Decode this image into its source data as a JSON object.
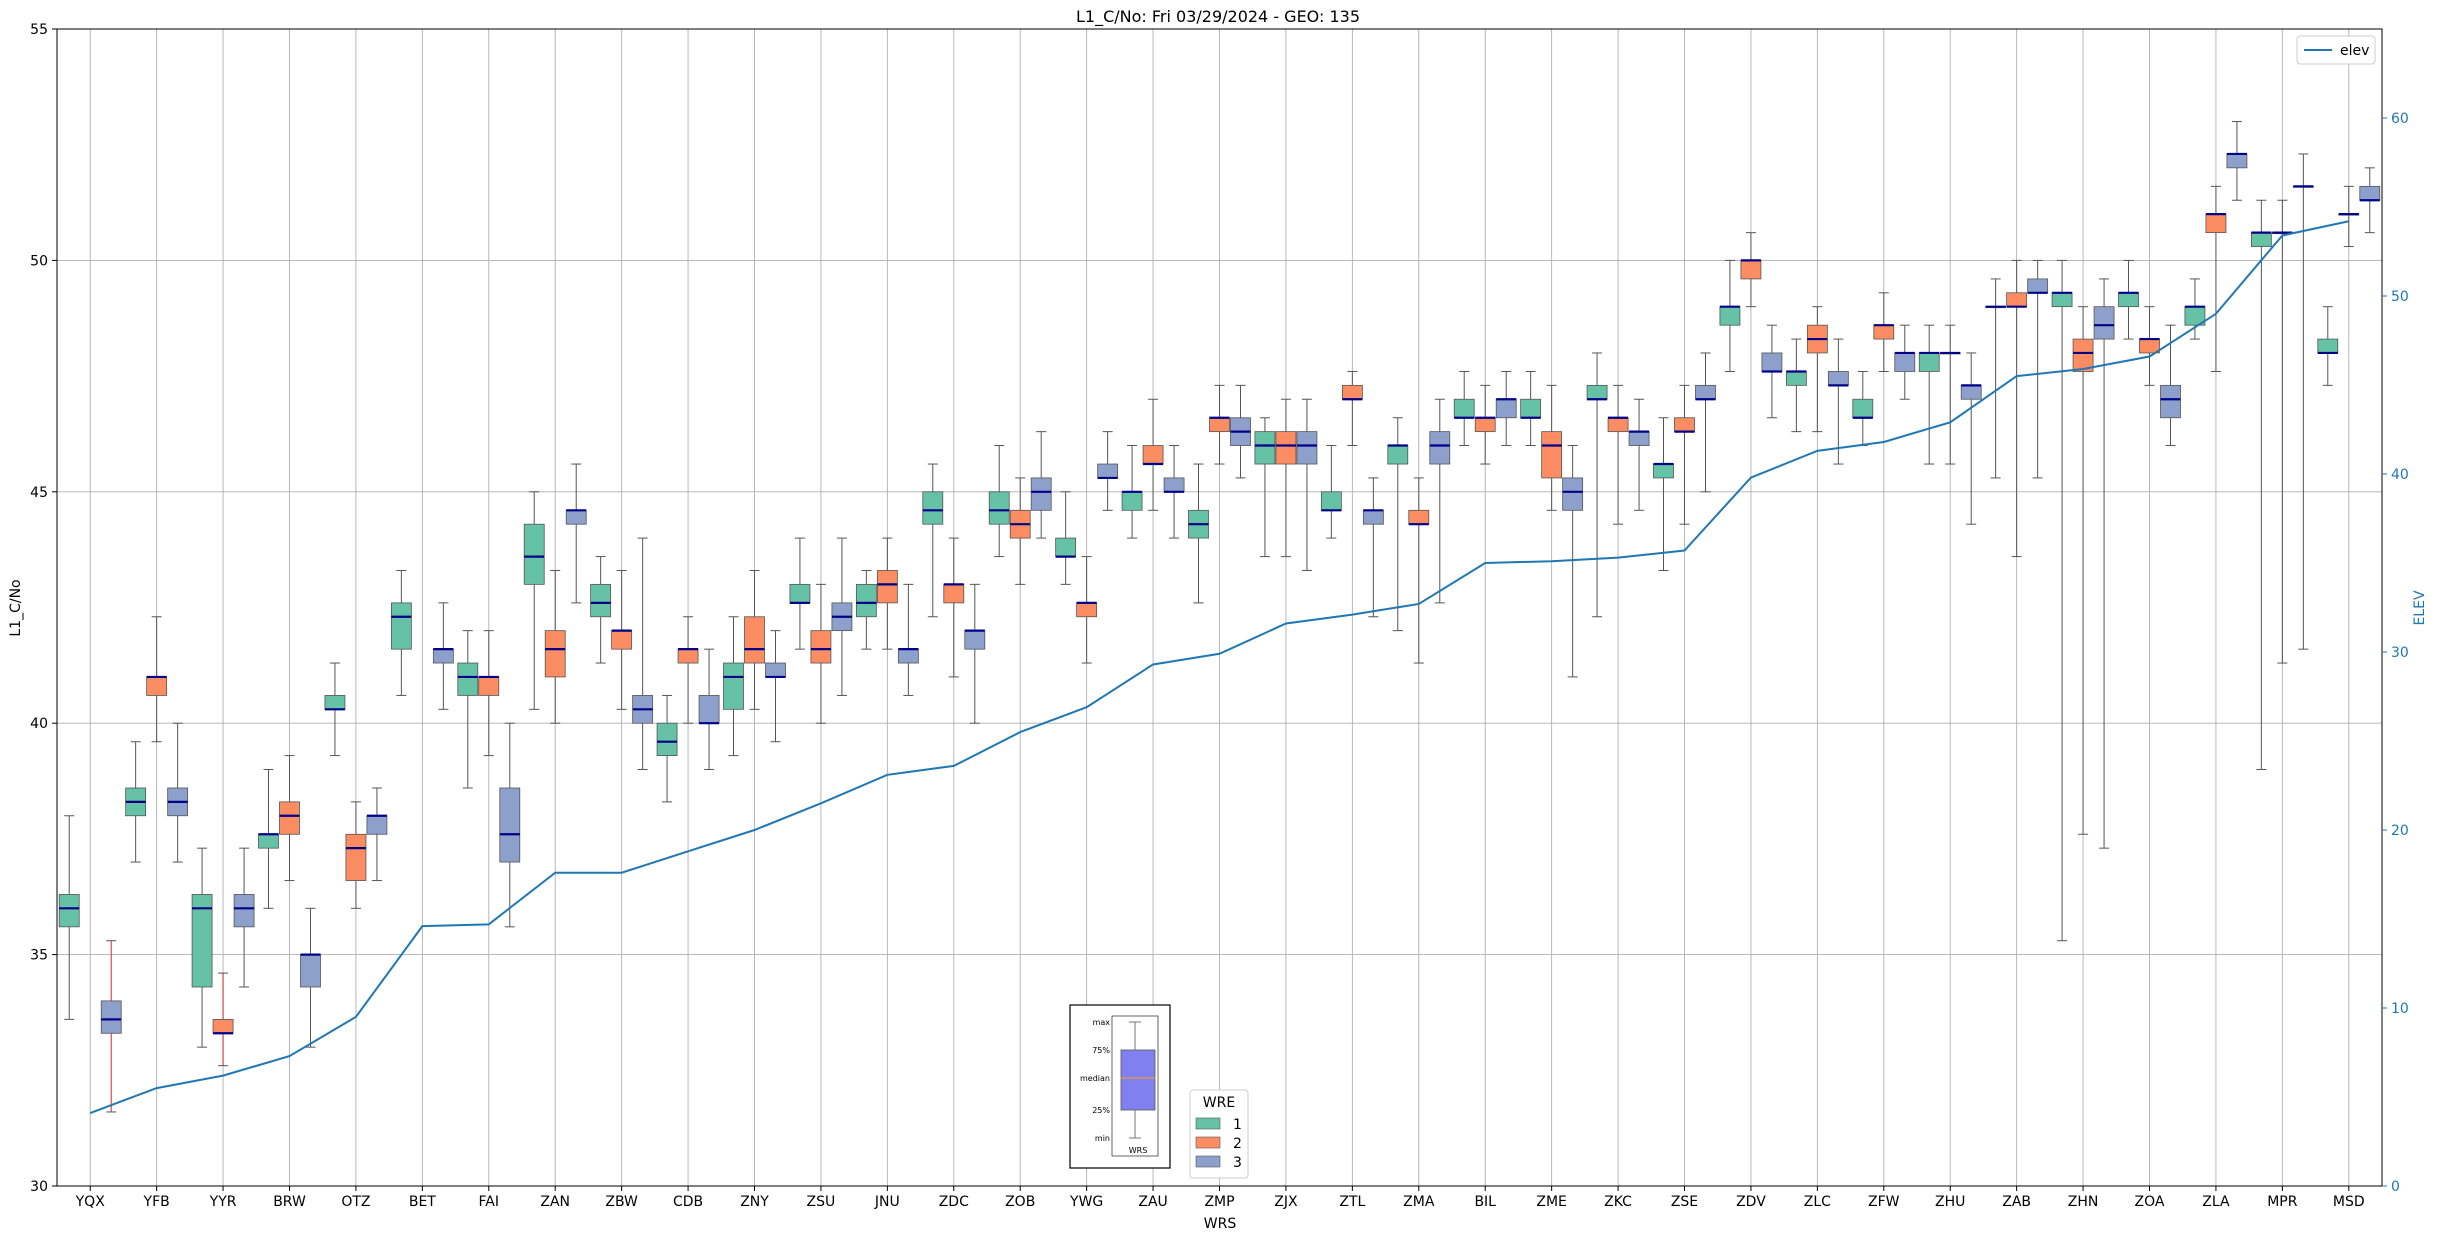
{
  "chart_data": {
    "type": "box",
    "title": "L1_C/No: Fri 03/29/2024 - GEO: 135",
    "xlabel": "WRS",
    "ylabel": "L1_C/No",
    "y2label": "ELEV",
    "ylim": [
      30,
      55
    ],
    "y2lim": [
      0,
      65
    ],
    "yticks": [
      30,
      35,
      40,
      45,
      50,
      55
    ],
    "y2ticks": [
      0,
      10,
      20,
      30,
      40,
      50,
      60
    ],
    "grid": true,
    "categories": [
      "YQX",
      "YFB",
      "YYR",
      "BRW",
      "OTZ",
      "BET",
      "FAI",
      "ZAN",
      "ZBW",
      "CDB",
      "ZNY",
      "ZSU",
      "JNU",
      "ZDC",
      "ZOB",
      "YWG",
      "ZAU",
      "ZMP",
      "ZJX",
      "ZTL",
      "ZMA",
      "BIL",
      "ZME",
      "ZKC",
      "ZSE",
      "ZDV",
      "ZLC",
      "ZFW",
      "ZHU",
      "ZAB",
      "ZHN",
      "ZOA",
      "ZLA",
      "MPR",
      "MSD"
    ],
    "wre_colors": {
      "1": "#66c2a5",
      "2": "#fc8d62",
      "3": "#8da0cb"
    },
    "elev_line": {
      "name": "elev",
      "color": "#1f77b4",
      "values": [
        4.1,
        5.5,
        6.2,
        7.3,
        9.5,
        14.6,
        14.7,
        17.6,
        17.6,
        18.8,
        20.0,
        21.5,
        23.1,
        23.6,
        25.5,
        26.9,
        29.3,
        29.9,
        31.6,
        32.1,
        32.7,
        35.0,
        35.1,
        35.3,
        35.7,
        39.8,
        41.3,
        41.8,
        42.9,
        45.5,
        45.9,
        46.6,
        49.0,
        53.4,
        54.2
      ]
    },
    "boxes": [
      {
        "category": "YQX",
        "wre": "1",
        "min": 33.6,
        "q1": 35.6,
        "median": 36.0,
        "q3": 36.3,
        "max": 38.0
      },
      {
        "category": "YQX",
        "wre": "3",
        "min": 31.6,
        "q1": 33.3,
        "median": 33.6,
        "q3": 34.0,
        "max": 35.3,
        "red_whisker": true
      },
      {
        "category": "YFB",
        "wre": "1",
        "min": 37.0,
        "q1": 38.0,
        "median": 38.3,
        "q3": 38.6,
        "max": 39.6
      },
      {
        "category": "YFB",
        "wre": "2",
        "min": 39.6,
        "q1": 40.6,
        "median": 41.0,
        "q3": 41.0,
        "max": 42.3
      },
      {
        "category": "YFB",
        "wre": "3",
        "min": 37.0,
        "q1": 38.0,
        "median": 38.3,
        "q3": 38.6,
        "max": 40.0
      },
      {
        "category": "YYR",
        "wre": "1",
        "min": 33.0,
        "q1": 34.3,
        "median": 36.0,
        "q3": 36.3,
        "max": 37.3
      },
      {
        "category": "YYR",
        "wre": "2",
        "min": 32.6,
        "q1": 33.3,
        "median": 33.3,
        "q3": 33.6,
        "max": 34.6,
        "red_whisker": true
      },
      {
        "category": "YYR",
        "wre": "3",
        "min": 34.3,
        "q1": 35.6,
        "median": 36.0,
        "q3": 36.3,
        "max": 37.3
      },
      {
        "category": "BRW",
        "wre": "1",
        "min": 36.0,
        "q1": 37.3,
        "median": 37.6,
        "q3": 37.6,
        "max": 39.0
      },
      {
        "category": "BRW",
        "wre": "2",
        "min": 36.6,
        "q1": 37.6,
        "median": 38.0,
        "q3": 38.3,
        "max": 39.3
      },
      {
        "category": "BRW",
        "wre": "3",
        "min": 33.0,
        "q1": 34.3,
        "median": 35.0,
        "q3": 35.0,
        "max": 36.0
      },
      {
        "category": "OTZ",
        "wre": "1",
        "min": 39.3,
        "q1": 40.3,
        "median": 40.3,
        "q3": 40.6,
        "max": 41.3
      },
      {
        "category": "OTZ",
        "wre": "2",
        "min": 36.0,
        "q1": 36.6,
        "median": 37.3,
        "q3": 37.6,
        "max": 38.3
      },
      {
        "category": "OTZ",
        "wre": "3",
        "min": 36.6,
        "q1": 37.6,
        "median": 38.0,
        "q3": 38.0,
        "max": 38.6
      },
      {
        "category": "BET",
        "wre": "1",
        "min": 40.6,
        "q1": 41.6,
        "median": 42.3,
        "q3": 42.6,
        "max": 43.3
      },
      {
        "category": "BET",
        "wre": "3",
        "min": 40.3,
        "q1": 41.3,
        "median": 41.6,
        "q3": 41.6,
        "max": 42.6
      },
      {
        "category": "FAI",
        "wre": "1",
        "min": 38.6,
        "q1": 40.6,
        "median": 41.0,
        "q3": 41.3,
        "max": 42.0
      },
      {
        "category": "FAI",
        "wre": "2",
        "min": 39.3,
        "q1": 40.6,
        "median": 41.0,
        "q3": 41.0,
        "max": 42.0
      },
      {
        "category": "FAI",
        "wre": "3",
        "min": 35.6,
        "q1": 37.0,
        "median": 37.6,
        "q3": 38.6,
        "max": 40.0
      },
      {
        "category": "ZAN",
        "wre": "1",
        "min": 40.3,
        "q1": 43.0,
        "median": 43.6,
        "q3": 44.3,
        "max": 45.0
      },
      {
        "category": "ZAN",
        "wre": "2",
        "min": 40.0,
        "q1": 41.0,
        "median": 41.6,
        "q3": 42.0,
        "max": 43.3
      },
      {
        "category": "ZAN",
        "wre": "3",
        "min": 42.6,
        "q1": 44.3,
        "median": 44.6,
        "q3": 44.6,
        "max": 45.6
      },
      {
        "category": "ZBW",
        "wre": "1",
        "min": 41.3,
        "q1": 42.3,
        "median": 42.6,
        "q3": 43.0,
        "max": 43.6
      },
      {
        "category": "ZBW",
        "wre": "2",
        "min": 40.3,
        "q1": 41.6,
        "median": 42.0,
        "q3": 42.0,
        "max": 43.3
      },
      {
        "category": "ZBW",
        "wre": "3",
        "min": 39.0,
        "q1": 40.0,
        "median": 40.3,
        "q3": 40.6,
        "max": 44.0
      },
      {
        "category": "CDB",
        "wre": "1",
        "min": 38.3,
        "q1": 39.3,
        "median": 39.6,
        "q3": 40.0,
        "max": 40.6
      },
      {
        "category": "CDB",
        "wre": "2",
        "min": 40.0,
        "q1": 41.3,
        "median": 41.6,
        "q3": 41.6,
        "max": 42.3
      },
      {
        "category": "CDB",
        "wre": "3",
        "min": 39.0,
        "q1": 40.0,
        "median": 40.0,
        "q3": 40.6,
        "max": 41.6
      },
      {
        "category": "ZNY",
        "wre": "1",
        "min": 39.3,
        "q1": 40.3,
        "median": 41.0,
        "q3": 41.3,
        "max": 42.3
      },
      {
        "category": "ZNY",
        "wre": "2",
        "min": 40.3,
        "q1": 41.3,
        "median": 41.6,
        "q3": 42.3,
        "max": 43.3
      },
      {
        "category": "ZNY",
        "wre": "3",
        "min": 39.6,
        "q1": 41.0,
        "median": 41.0,
        "q3": 41.3,
        "max": 42.0
      },
      {
        "category": "ZSU",
        "wre": "1",
        "min": 41.6,
        "q1": 42.6,
        "median": 42.6,
        "q3": 43.0,
        "max": 44.0
      },
      {
        "category": "ZSU",
        "wre": "2",
        "min": 40.0,
        "q1": 41.3,
        "median": 41.6,
        "q3": 42.0,
        "max": 43.0
      },
      {
        "category": "ZSU",
        "wre": "3",
        "min": 40.6,
        "q1": 42.0,
        "median": 42.3,
        "q3": 42.6,
        "max": 44.0
      },
      {
        "category": "JNU",
        "wre": "1",
        "min": 41.6,
        "q1": 42.3,
        "median": 42.6,
        "q3": 43.0,
        "max": 43.3
      },
      {
        "category": "JNU",
        "wre": "2",
        "min": 41.6,
        "q1": 42.6,
        "median": 43.0,
        "q3": 43.3,
        "max": 44.0
      },
      {
        "category": "JNU",
        "wre": "3",
        "min": 40.6,
        "q1": 41.3,
        "median": 41.6,
        "q3": 41.6,
        "max": 43.0
      },
      {
        "category": "ZDC",
        "wre": "1",
        "min": 42.3,
        "q1": 44.3,
        "median": 44.6,
        "q3": 45.0,
        "max": 45.6
      },
      {
        "category": "ZDC",
        "wre": "2",
        "min": 41.0,
        "q1": 42.6,
        "median": 43.0,
        "q3": 43.0,
        "max": 44.0
      },
      {
        "category": "ZDC",
        "wre": "3",
        "min": 40.0,
        "q1": 41.6,
        "median": 42.0,
        "q3": 42.0,
        "max": 43.0
      },
      {
        "category": "ZOB",
        "wre": "1",
        "min": 43.6,
        "q1": 44.3,
        "median": 44.6,
        "q3": 45.0,
        "max": 46.0
      },
      {
        "category": "ZOB",
        "wre": "2",
        "min": 43.0,
        "q1": 44.0,
        "median": 44.3,
        "q3": 44.6,
        "max": 45.3
      },
      {
        "category": "ZOB",
        "wre": "3",
        "min": 44.0,
        "q1": 44.6,
        "median": 45.0,
        "q3": 45.3,
        "max": 46.3
      },
      {
        "category": "YWG",
        "wre": "1",
        "min": 43.0,
        "q1": 43.6,
        "median": 43.6,
        "q3": 44.0,
        "max": 45.0
      },
      {
        "category": "YWG",
        "wre": "2",
        "min": 41.3,
        "q1": 42.3,
        "median": 42.6,
        "q3": 42.6,
        "max": 43.6
      },
      {
        "category": "YWG",
        "wre": "3",
        "min": 44.6,
        "q1": 45.3,
        "median": 45.3,
        "q3": 45.6,
        "max": 46.3
      },
      {
        "category": "ZAU",
        "wre": "1",
        "min": 44.0,
        "q1": 44.6,
        "median": 45.0,
        "q3": 45.0,
        "max": 46.0
      },
      {
        "category": "ZAU",
        "wre": "2",
        "min": 44.6,
        "q1": 45.6,
        "median": 45.6,
        "q3": 46.0,
        "max": 47.0
      },
      {
        "category": "ZAU",
        "wre": "3",
        "min": 44.0,
        "q1": 45.0,
        "median": 45.0,
        "q3": 45.3,
        "max": 46.0
      },
      {
        "category": "ZMP",
        "wre": "1",
        "min": 42.6,
        "q1": 44.0,
        "median": 44.3,
        "q3": 44.6,
        "max": 45.6
      },
      {
        "category": "ZMP",
        "wre": "2",
        "min": 45.6,
        "q1": 46.3,
        "median": 46.6,
        "q3": 46.6,
        "max": 47.3
      },
      {
        "category": "ZMP",
        "wre": "3",
        "min": 45.3,
        "q1": 46.0,
        "median": 46.3,
        "q3": 46.6,
        "max": 47.3
      },
      {
        "category": "ZJX",
        "wre": "1",
        "min": 43.6,
        "q1": 45.6,
        "median": 46.0,
        "q3": 46.3,
        "max": 46.6
      },
      {
        "category": "ZJX",
        "wre": "2",
        "min": 43.6,
        "q1": 45.6,
        "median": 46.0,
        "q3": 46.3,
        "max": 47.0
      },
      {
        "category": "ZJX",
        "wre": "3",
        "min": 43.3,
        "q1": 45.6,
        "median": 46.0,
        "q3": 46.3,
        "max": 47.0
      },
      {
        "category": "ZTL",
        "wre": "1",
        "min": 44.0,
        "q1": 44.6,
        "median": 44.6,
        "q3": 45.0,
        "max": 46.0
      },
      {
        "category": "ZTL",
        "wre": "2",
        "min": 46.0,
        "q1": 47.0,
        "median": 47.0,
        "q3": 47.3,
        "max": 47.6
      },
      {
        "category": "ZTL",
        "wre": "3",
        "min": 42.3,
        "q1": 44.3,
        "median": 44.6,
        "q3": 44.6,
        "max": 45.3
      },
      {
        "category": "ZMA",
        "wre": "1",
        "min": 42.0,
        "q1": 45.6,
        "median": 46.0,
        "q3": 46.0,
        "max": 46.6
      },
      {
        "category": "ZMA",
        "wre": "2",
        "min": 41.3,
        "q1": 44.3,
        "median": 44.3,
        "q3": 44.6,
        "max": 45.3
      },
      {
        "category": "ZMA",
        "wre": "3",
        "min": 42.6,
        "q1": 45.6,
        "median": 46.0,
        "q3": 46.3,
        "max": 47.0
      },
      {
        "category": "BIL",
        "wre": "1",
        "min": 46.0,
        "q1": 46.6,
        "median": 46.6,
        "q3": 47.0,
        "max": 47.6
      },
      {
        "category": "BIL",
        "wre": "2",
        "min": 45.6,
        "q1": 46.3,
        "median": 46.6,
        "q3": 46.6,
        "max": 47.3
      },
      {
        "category": "BIL",
        "wre": "3",
        "min": 46.0,
        "q1": 46.6,
        "median": 47.0,
        "q3": 47.0,
        "max": 47.6
      },
      {
        "category": "ZME",
        "wre": "1",
        "min": 46.0,
        "q1": 46.6,
        "median": 46.6,
        "q3": 47.0,
        "max": 47.6
      },
      {
        "category": "ZME",
        "wre": "2",
        "min": 44.6,
        "q1": 45.3,
        "median": 46.0,
        "q3": 46.3,
        "max": 47.3
      },
      {
        "category": "ZME",
        "wre": "3",
        "min": 41.0,
        "q1": 44.6,
        "median": 45.0,
        "q3": 45.3,
        "max": 46.0
      },
      {
        "category": "ZKC",
        "wre": "1",
        "min": 42.3,
        "q1": 47.0,
        "median": 47.0,
        "q3": 47.3,
        "max": 48.0
      },
      {
        "category": "ZKC",
        "wre": "2",
        "min": 44.3,
        "q1": 46.3,
        "median": 46.6,
        "q3": 46.6,
        "max": 47.3
      },
      {
        "category": "ZKC",
        "wre": "3",
        "min": 44.6,
        "q1": 46.0,
        "median": 46.3,
        "q3": 46.3,
        "max": 47.0
      },
      {
        "category": "ZSE",
        "wre": "1",
        "min": 43.3,
        "q1": 45.3,
        "median": 45.6,
        "q3": 45.6,
        "max": 46.6
      },
      {
        "category": "ZSE",
        "wre": "2",
        "min": 44.3,
        "q1": 46.3,
        "median": 46.3,
        "q3": 46.6,
        "max": 47.3
      },
      {
        "category": "ZSE",
        "wre": "3",
        "min": 45.0,
        "q1": 47.0,
        "median": 47.0,
        "q3": 47.3,
        "max": 48.0
      },
      {
        "category": "ZDV",
        "wre": "1",
        "min": 47.6,
        "q1": 48.6,
        "median": 49.0,
        "q3": 49.0,
        "max": 50.0
      },
      {
        "category": "ZDV",
        "wre": "2",
        "min": 49.0,
        "q1": 49.6,
        "median": 50.0,
        "q3": 50.0,
        "max": 50.6
      },
      {
        "category": "ZDV",
        "wre": "3",
        "min": 46.6,
        "q1": 47.6,
        "median": 47.6,
        "q3": 48.0,
        "max": 48.6
      },
      {
        "category": "ZLC",
        "wre": "1",
        "min": 46.3,
        "q1": 47.3,
        "median": 47.6,
        "q3": 47.6,
        "max": 48.3
      },
      {
        "category": "ZLC",
        "wre": "2",
        "min": 46.3,
        "q1": 48.0,
        "median": 48.3,
        "q3": 48.6,
        "max": 49.0
      },
      {
        "category": "ZLC",
        "wre": "3",
        "min": 45.6,
        "q1": 47.3,
        "median": 47.3,
        "q3": 47.6,
        "max": 48.3
      },
      {
        "category": "ZFW",
        "wre": "1",
        "min": 46.0,
        "q1": 46.6,
        "median": 46.6,
        "q3": 47.0,
        "max": 47.6
      },
      {
        "category": "ZFW",
        "wre": "2",
        "min": 47.6,
        "q1": 48.3,
        "median": 48.6,
        "q3": 48.6,
        "max": 49.3
      },
      {
        "category": "ZFW",
        "wre": "3",
        "min": 47.0,
        "q1": 47.6,
        "median": 48.0,
        "q3": 48.0,
        "max": 48.6
      },
      {
        "category": "ZHU",
        "wre": "1",
        "min": 45.6,
        "q1": 47.6,
        "median": 48.0,
        "q3": 48.0,
        "max": 48.6
      },
      {
        "category": "ZHU",
        "wre": "2",
        "min": 45.6,
        "q1": 48.0,
        "median": 48.0,
        "q3": 48.0,
        "max": 48.6
      },
      {
        "category": "ZHU",
        "wre": "3",
        "min": 44.3,
        "q1": 47.0,
        "median": 47.3,
        "q3": 47.3,
        "max": 48.0
      },
      {
        "category": "ZAB",
        "wre": "1",
        "min": 45.3,
        "q1": 49.0,
        "median": 49.0,
        "q3": 49.0,
        "max": 49.6
      },
      {
        "category": "ZAB",
        "wre": "2",
        "min": 43.6,
        "q1": 49.0,
        "median": 49.0,
        "q3": 49.3,
        "max": 50.0
      },
      {
        "category": "ZAB",
        "wre": "3",
        "min": 45.3,
        "q1": 49.3,
        "median": 49.3,
        "q3": 49.6,
        "max": 50.0
      },
      {
        "category": "ZHN",
        "wre": "1",
        "min": 35.3,
        "q1": 49.0,
        "median": 49.3,
        "q3": 49.3,
        "max": 50.0
      },
      {
        "category": "ZHN",
        "wre": "2",
        "min": 37.6,
        "q1": 47.6,
        "median": 48.0,
        "q3": 48.3,
        "max": 49.0
      },
      {
        "category": "ZHN",
        "wre": "3",
        "min": 37.3,
        "q1": 48.3,
        "median": 48.6,
        "q3": 49.0,
        "max": 49.6
      },
      {
        "category": "ZOA",
        "wre": "1",
        "min": 48.3,
        "q1": 49.0,
        "median": 49.3,
        "q3": 49.3,
        "max": 50.0
      },
      {
        "category": "ZOA",
        "wre": "2",
        "min": 47.3,
        "q1": 48.0,
        "median": 48.3,
        "q3": 48.3,
        "max": 49.0
      },
      {
        "category": "ZOA",
        "wre": "3",
        "min": 46.0,
        "q1": 46.6,
        "median": 47.0,
        "q3": 47.3,
        "max": 48.6
      },
      {
        "category": "ZLA",
        "wre": "1",
        "min": 48.3,
        "q1": 48.6,
        "median": 49.0,
        "q3": 49.0,
        "max": 49.6
      },
      {
        "category": "ZLA",
        "wre": "2",
        "min": 47.6,
        "q1": 50.6,
        "median": 51.0,
        "q3": 51.0,
        "max": 51.6
      },
      {
        "category": "ZLA",
        "wre": "3",
        "min": 51.3,
        "q1": 52.0,
        "median": 52.3,
        "q3": 52.3,
        "max": 53.0
      },
      {
        "category": "MPR",
        "wre": "1",
        "min": 39.0,
        "q1": 50.3,
        "median": 50.6,
        "q3": 50.6,
        "max": 51.3
      },
      {
        "category": "MPR",
        "wre": "2",
        "min": 41.3,
        "q1": 50.6,
        "median": 50.6,
        "q3": 50.6,
        "max": 51.3
      },
      {
        "category": "MPR",
        "wre": "3",
        "min": 41.6,
        "q1": 51.6,
        "median": 51.6,
        "q3": 51.6,
        "max": 52.3
      },
      {
        "category": "MSD",
        "wre": "1",
        "min": 47.3,
        "q1": 48.0,
        "median": 48.0,
        "q3": 48.3,
        "max": 49.0
      },
      {
        "category": "MSD",
        "wre": "2",
        "min": 50.3,
        "q1": 51.0,
        "median": 51.0,
        "q3": 51.0,
        "max": 51.6
      },
      {
        "category": "MSD",
        "wre": "3",
        "min": 50.6,
        "q1": 51.3,
        "median": 51.3,
        "q3": 51.6,
        "max": 52.0
      }
    ],
    "legend_elev": {
      "label": "elev",
      "position": "top-right"
    },
    "legend_wre": {
      "title": "WRE",
      "entries": [
        "1",
        "2",
        "3"
      ]
    },
    "key_inset": {
      "labels": [
        "max",
        "75%",
        "median",
        "25%",
        "min"
      ],
      "xlabel": "WRS"
    }
  }
}
